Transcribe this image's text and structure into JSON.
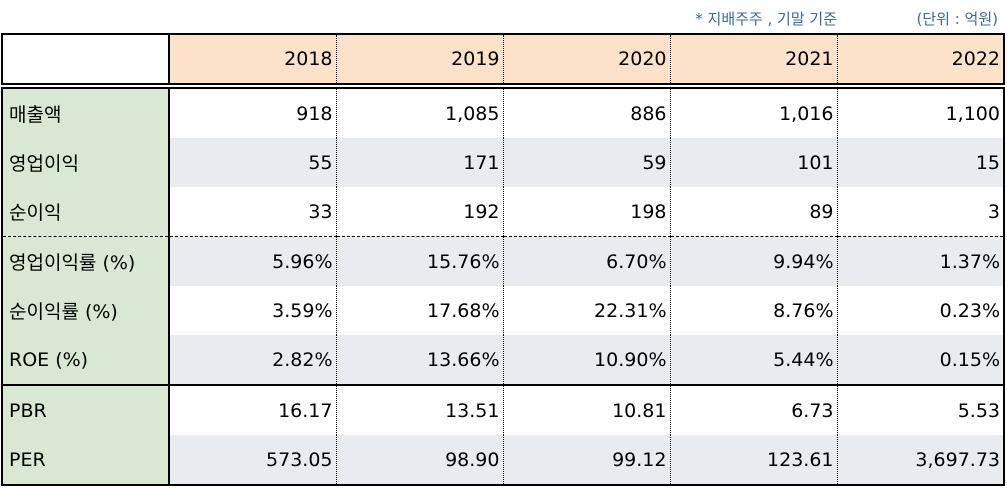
{
  "notes": {
    "basis": "* 지배주주 , 기말 기준",
    "unit": "(단위 : 억원)"
  },
  "table": {
    "years": [
      "2018",
      "2019",
      "2020",
      "2021",
      "2022"
    ],
    "rows": [
      {
        "label": "매출액",
        "values": [
          "918",
          "1,085",
          "886",
          "1,016",
          "1,100"
        ]
      },
      {
        "label": "영업이익",
        "values": [
          "55",
          "171",
          "59",
          "101",
          "15"
        ]
      },
      {
        "label": "순이익",
        "values": [
          "33",
          "192",
          "198",
          "89",
          "3"
        ]
      },
      {
        "label": "영업이익률 (%)",
        "values": [
          "5.96%",
          "15.76%",
          "6.70%",
          "9.94%",
          "1.37%"
        ]
      },
      {
        "label": "순이익률 (%)",
        "values": [
          "3.59%",
          "17.68%",
          "22.31%",
          "8.76%",
          "0.23%"
        ]
      },
      {
        "label": "ROE (%)",
        "values": [
          "2.82%",
          "13.66%",
          "10.90%",
          "5.44%",
          "0.15%"
        ]
      },
      {
        "label": "PBR",
        "values": [
          "16.17",
          "13.51",
          "10.81",
          "6.73",
          "5.53"
        ]
      },
      {
        "label": "PER",
        "values": [
          "573.05",
          "98.90",
          "99.12",
          "123.61",
          "3,697.73"
        ]
      }
    ]
  },
  "colors": {
    "header_bg": "#fbe2c9",
    "label_bg": "#d8e8d2",
    "stripe_bg": "#e8ecf0",
    "note_text": "#3d6a94"
  }
}
